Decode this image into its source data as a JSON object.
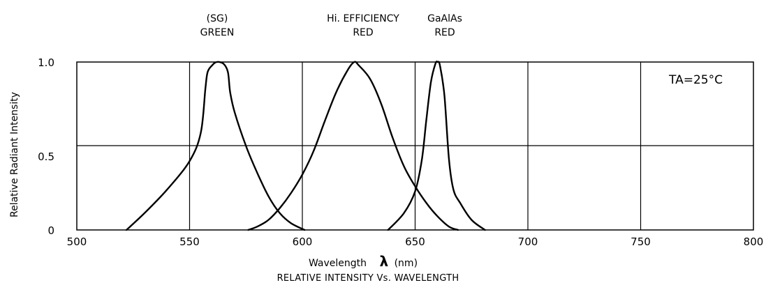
{
  "chart_data": {
    "type": "line",
    "title": "",
    "subtitle": "RELATIVE INTENSITY Vs. WAVELENGTH",
    "xlabel": "Wavelength",
    "xlabel_symbol": "λ",
    "xlabel_unit": "(nm)",
    "ylabel": "Relative Radiant Intensity",
    "xlim": [
      500,
      800
    ],
    "ylim": [
      0,
      1.0
    ],
    "x_ticks": [
      "500",
      "550",
      "600",
      "650",
      "700",
      "750",
      "800"
    ],
    "y_ticks": [
      "1.0",
      "0.5",
      "0"
    ],
    "grid": true,
    "annotation": "TA=25°C",
    "series": [
      {
        "name_line1": "(SG)",
        "name_line2": "GREEN",
        "x": [
          522,
          530,
          540,
          550,
          555,
          557,
          558,
          560,
          562,
          565,
          567,
          568,
          570,
          575,
          580,
          585,
          590,
          595,
          601
        ],
        "y": [
          0,
          0.1,
          0.24,
          0.41,
          0.58,
          0.84,
          0.94,
          0.98,
          1.0,
          0.99,
          0.94,
          0.82,
          0.7,
          0.5,
          0.34,
          0.2,
          0.1,
          0.04,
          0
        ]
      },
      {
        "name_line1": "Hi. EFFICIENCY",
        "name_line2": "RED",
        "x": [
          576,
          580,
          585,
          590,
          595,
          600,
          605,
          610,
          615,
          620,
          623,
          625,
          630,
          635,
          640,
          645,
          650,
          655,
          660,
          665,
          669
        ],
        "y": [
          0,
          0.02,
          0.06,
          0.13,
          0.22,
          0.33,
          0.47,
          0.65,
          0.82,
          0.95,
          1.0,
          0.98,
          0.9,
          0.75,
          0.55,
          0.38,
          0.26,
          0.16,
          0.08,
          0.02,
          0
        ]
      },
      {
        "name_line1": "GaAlAs",
        "name_line2": "RED",
        "x": [
          638,
          645,
          650,
          653,
          655,
          657,
          659,
          660,
          661,
          663,
          665,
          667,
          670,
          675,
          681
        ],
        "y": [
          0,
          0.1,
          0.23,
          0.42,
          0.66,
          0.88,
          0.99,
          1.0,
          0.98,
          0.8,
          0.42,
          0.24,
          0.16,
          0.06,
          0
        ]
      }
    ]
  }
}
